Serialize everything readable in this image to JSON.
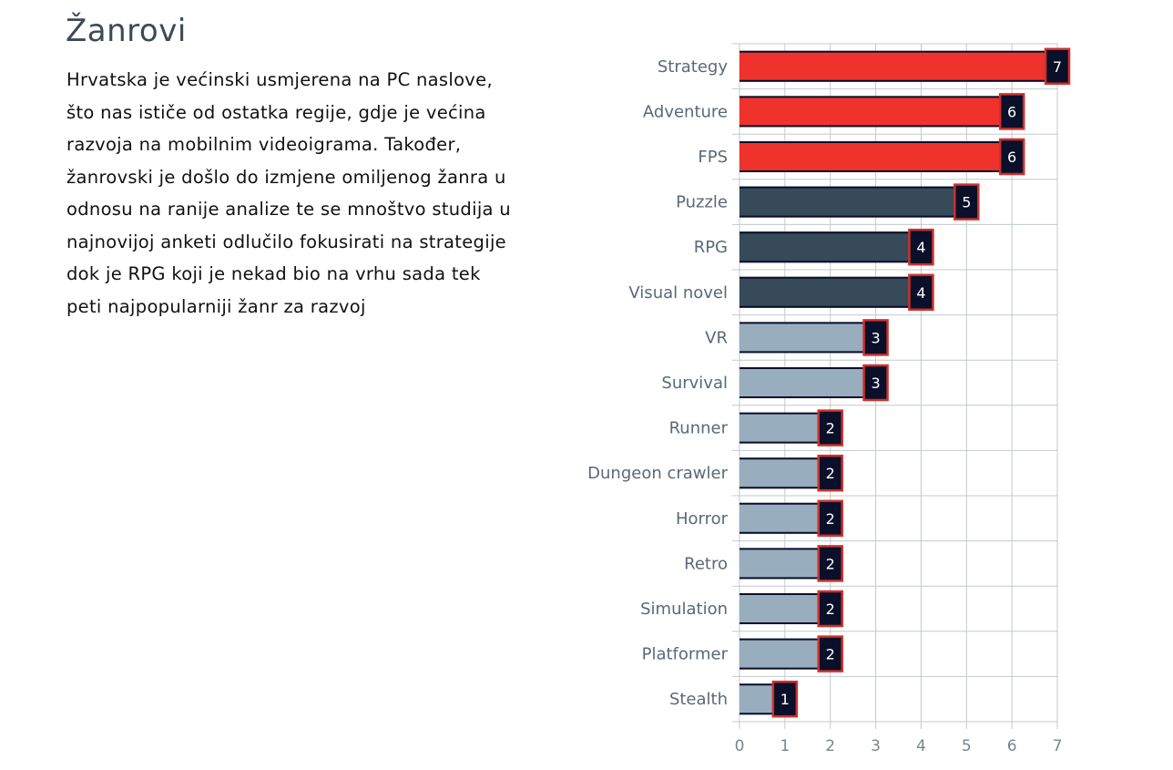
{
  "section": {
    "title": "Žanrovi",
    "text": "Hrvatska je većinski usmjerena na PC naslove, što nas ističe od ostatka regije, gdje je većina razvoja na mobilnim videoigrama. Također, žanrovski je došlo do izmjene omiljenog žanra u odnosu na ranije analize te se mnoštvo studija u najnovijoj anketi odlučilo fokusirati na strategije dok je RPG koji je nekad bio na vrhu sada tek peti najpopularniji žanr za razvoj"
  },
  "chart_data": {
    "type": "bar",
    "orientation": "horizontal",
    "categories": [
      "Strategy",
      "Adventure",
      "FPS",
      "Puzzle",
      "RPG",
      "Visual novel",
      "VR",
      "Survival",
      "Runner",
      "Dungeon crawler",
      "Horror",
      "Retro",
      "Simulation",
      "Platformer",
      "Stealth"
    ],
    "values": [
      7,
      6,
      6,
      5,
      4,
      4,
      3,
      3,
      2,
      2,
      2,
      2,
      2,
      2,
      1
    ],
    "xlim": [
      0,
      7
    ],
    "xticks": [
      0,
      1,
      2,
      3,
      4,
      5,
      6,
      7
    ],
    "grid": true,
    "colors": {
      "top": "#ef322b",
      "mid": "#364a5a",
      "low": "#98adbd",
      "label_bg": "#0a0f2a",
      "label_border": "#d0302b"
    }
  }
}
